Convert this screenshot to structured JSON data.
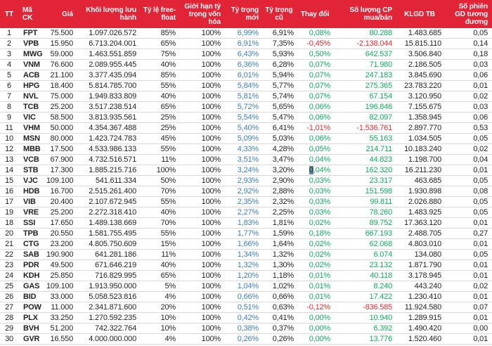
{
  "colors": {
    "header_bg": "#e22437",
    "header_text": "#ffffff",
    "body_text": "#232323",
    "new_weight_blue": "#3b7ec9",
    "positive_green": "#0eae5e",
    "negative_red": "#ee2a2d",
    "row_border": "#d9d9d9",
    "selection_bg": "#5d8b97"
  },
  "chart_data": {
    "type": "table",
    "columns": [
      "TT",
      "Mã CK",
      "Giá",
      "Khối lượng lưu hành",
      "Tỷ lệ free-float",
      "Giới hạn tỷ trọng vốn hóa",
      "Tỷ trọng mới",
      "Tỷ trọng cũ",
      "Thay đổi",
      "Số lượng CP mua/bán",
      "KLGD TB",
      "Số phiên GD tương đương"
    ],
    "column_keys": [
      "tt",
      "ma-ck",
      "gia",
      "khoi-luong-luu-hanh",
      "ty-le-free-float",
      "gioi-han-ty-trong-von-hoa",
      "ty-trong-moi",
      "ty-trong-cu",
      "thay-doi",
      "so-luong-cp-mua-ban",
      "klgd-tb",
      "so-phien-gd-tuong-duong"
    ],
    "rows": [
      [
        "1",
        "FPT",
        "75.500",
        "1.097.026.572",
        "85%",
        "100%",
        "6,99%",
        "6,91%",
        "0,08%",
        "80.288",
        "1.483.685",
        "0,05"
      ],
      [
        "2",
        "VPB",
        "15.950",
        "6.713.204.001",
        "65%",
        "100%",
        "6,91%",
        "7,35%",
        "-0,45%",
        "-2.138.044",
        "15.815.110",
        "0,14"
      ],
      [
        "3",
        "MWG",
        "59.000",
        "1.463.551.859",
        "75%",
        "100%",
        "6,43%",
        "5,93%",
        "0,50%",
        "642.537",
        "3.506.840",
        "0,18"
      ],
      [
        "4",
        "VNM",
        "76.600",
        "2.089.955.445",
        "40%",
        "100%",
        "6,36%",
        "6,28%",
        "0,07%",
        "71.980",
        "2.186.505",
        "0,03"
      ],
      [
        "5",
        "ACB",
        "21.100",
        "3.377.435.094",
        "85%",
        "100%",
        "6,01%",
        "5,94%",
        "0,07%",
        "247.183",
        "3.845.690",
        "0,06"
      ],
      [
        "6",
        "HPG",
        "18.400",
        "5.814.785.700",
        "55%",
        "100%",
        "5,84%",
        "5,77%",
        "0,07%",
        "275.365",
        "23.783.220",
        "0,01"
      ],
      [
        "7",
        "NVL",
        "75.000",
        "1.949.833.809",
        "40%",
        "100%",
        "5,81%",
        "5,74%",
        "0,07%",
        "67.154",
        "3.120.950",
        "0,02"
      ],
      [
        "8",
        "TCB",
        "25.200",
        "3.517.238.514",
        "65%",
        "100%",
        "5,72%",
        "5,65%",
        "0,06%",
        "196.846",
        "7.155.675",
        "0,03"
      ],
      [
        "9",
        "VIC",
        "58.500",
        "3.813.935.561",
        "25%",
        "100%",
        "5,54%",
        "5,47%",
        "0,06%",
        "82.097",
        "1.358.945",
        "0,06"
      ],
      [
        "11",
        "VHM",
        "50.000",
        "4.354.367.488",
        "25%",
        "100%",
        "5,40%",
        "6,41%",
        "-1,01%",
        "-1.536.761",
        "2.897.770",
        "0,53"
      ],
      [
        "10",
        "MSN",
        "80.000",
        "1.423.724.783",
        "45%",
        "100%",
        "5,09%",
        "5,03%",
        "0,06%",
        "55.163",
        "1.034.505",
        "0,05"
      ],
      [
        "12",
        "MBB",
        "17.500",
        "4.533.986.133",
        "55%",
        "100%",
        "4,33%",
        "4,28%",
        "0,05%",
        "214.711",
        "10.183.240",
        "0,02"
      ],
      [
        "13",
        "VCB",
        "67.900",
        "4.732.516.571",
        "11%",
        "100%",
        "3,51%",
        "3,47%",
        "0,04%",
        "44.823",
        "1.198.700",
        "0,04"
      ],
      [
        "14",
        "STB",
        "17.300",
        "1.885.215.716",
        "100%",
        "100%",
        "3,24%",
        "3,20%",
        "0,04%",
        "162.320",
        "16.211.230",
        "0,01"
      ],
      [
        "15",
        "VJC",
        "109.100",
        "541.611.334",
        "50%",
        "100%",
        "2,93%",
        "2,90%",
        "0,03%",
        "23.317",
        "463.685",
        "0,05"
      ],
      [
        "16",
        "HDB",
        "16.700",
        "2.515.261.400",
        "70%",
        "100%",
        "2,92%",
        "2,88%",
        "0,03%",
        "151.598",
        "1.930.898",
        "0,08"
      ],
      [
        "17",
        "VIB",
        "20.400",
        "2.107.672.945",
        "55%",
        "100%",
        "2,35%",
        "2,32%",
        "0,03%",
        "99.811",
        "2.026.880",
        "0,05"
      ],
      [
        "19",
        "VRE",
        "25.200",
        "2.272.318.410",
        "40%",
        "100%",
        "2,27%",
        "2,25%",
        "0,03%",
        "78.260",
        "1.483.925",
        "0,05"
      ],
      [
        "18",
        "SSI",
        "17.650",
        "1.489.138.669",
        "70%",
        "100%",
        "1,83%",
        "1,81%",
        "0,02%",
        "89.752",
        "17.363.120",
        "0,01"
      ],
      [
        "20",
        "TPB",
        "20.550",
        "1.581.755.495",
        "55%",
        "100%",
        "1,77%",
        "1,59%",
        "0,18%",
        "667.193",
        "2.488.705",
        "0,27"
      ],
      [
        "21",
        "CTG",
        "23.200",
        "4.805.750.609",
        "15%",
        "100%",
        "1,66%",
        "1,64%",
        "0,02%",
        "62.068",
        "4.803.010",
        "0,01"
      ],
      [
        "22",
        "SAB",
        "190.900",
        "641.281.186",
        "11%",
        "100%",
        "1,34%",
        "1,32%",
        "0,02%",
        "6.074",
        "134.080",
        "0,05"
      ],
      [
        "23",
        "PDR",
        "49.500",
        "671.646.219",
        "40%",
        "100%",
        "1,32%",
        "1,30%",
        "0,02%",
        "23.132",
        "1.871.790",
        "0,01"
      ],
      [
        "24",
        "KDH",
        "25.850",
        "716.829.995",
        "65%",
        "100%",
        "1,20%",
        "1,18%",
        "0,01%",
        "40.118",
        "3.178.945",
        "0,01"
      ],
      [
        "25",
        "GAS",
        "109.100",
        "1.913.950.000",
        "5%",
        "100%",
        "1,04%",
        "1,02%",
        "0,01%",
        "8.240",
        "443.240",
        "0,02"
      ],
      [
        "26",
        "BID",
        "33.000",
        "5.058.523.816",
        "4%",
        "100%",
        "0,66%",
        "0,66%",
        "0,01%",
        "17.422",
        "1.230.410",
        "0,01"
      ],
      [
        "27",
        "POW",
        "11.000",
        "2.341.871.600",
        "20%",
        "100%",
        "0,51%",
        "0,63%",
        "-0,12%",
        "-836.585",
        "11.924.580",
        "0,07"
      ],
      [
        "28",
        "PLX",
        "33.250",
        "1.270.592.235",
        "10%",
        "100%",
        "0,42%",
        "0,41%",
        "0,00%",
        "10.940",
        "1.289.915",
        "0,01"
      ],
      [
        "29",
        "BVH",
        "51.200",
        "742.322.764",
        "10%",
        "100%",
        "0,38%",
        "0,37%",
        "0,00%",
        "6.392",
        "1.490.420",
        "0,00"
      ],
      [
        "30",
        "GVR",
        "16.550",
        "4.000.000.000",
        "4%",
        "100%",
        "0,26%",
        "0,26%",
        "0,00%",
        "13.776",
        "1.520.460",
        "0,01"
      ]
    ],
    "highlight": {
      "row": 13,
      "col": 8,
      "chars": 1
    },
    "layout_hints": {
      "blue_column_index": 6,
      "signed_color_column_indexes": [
        8,
        9
      ]
    }
  }
}
